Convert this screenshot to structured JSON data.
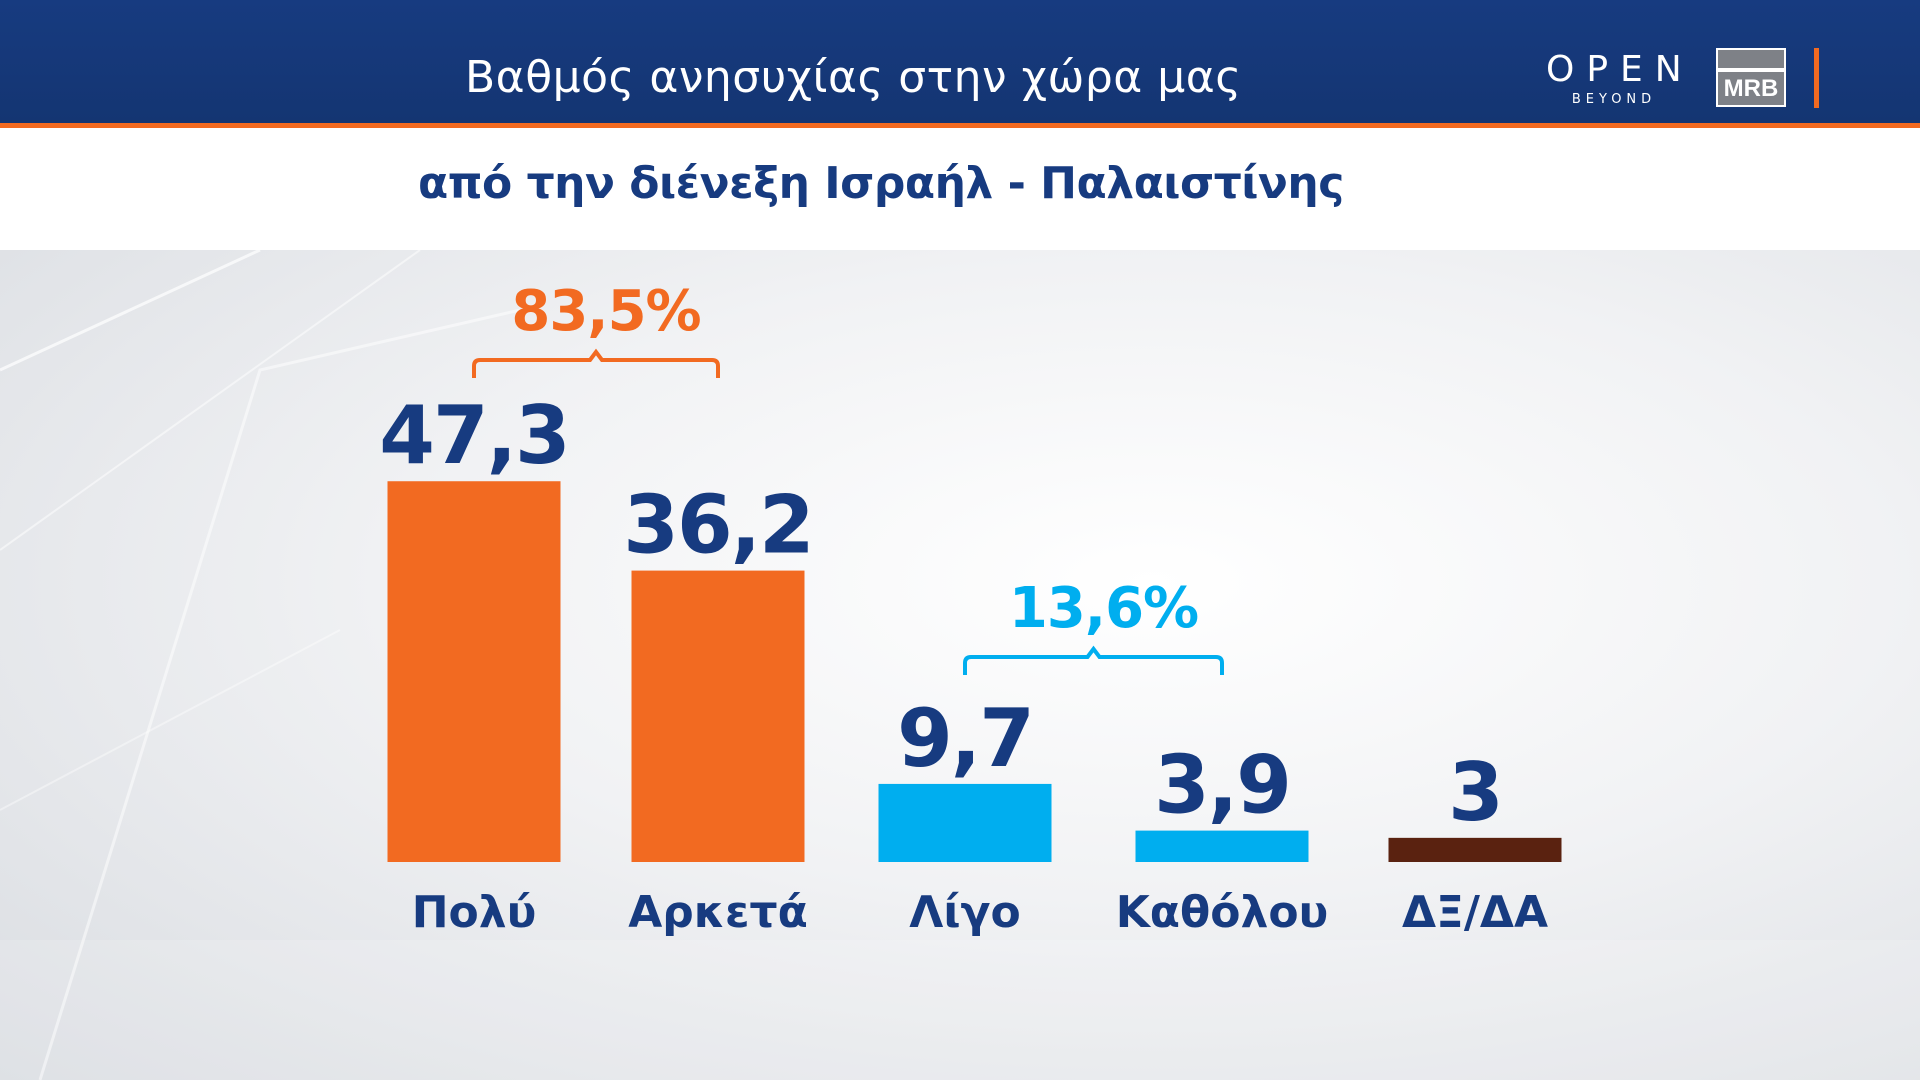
{
  "header": {
    "title": "Βαθμός ανησυχίας στην χώρα μας",
    "subtitle": "από την διένεξη Ισραήλ - Παλαιστίνης",
    "logo_open": "OPEN",
    "logo_beyond": "BEYOND",
    "logo_mrb": "MRB"
  },
  "colors": {
    "navy": "#173b80",
    "orange": "#f26a21",
    "cyan": "#00aeef",
    "brown": "#5a2210"
  },
  "chart_data": {
    "type": "bar",
    "title": "Βαθμός ανησυχίας στην χώρα μας",
    "subtitle": "από την διένεξη Ισραήλ - Παλαιστίνης",
    "categories": [
      "Πολύ",
      "Αρκετά",
      "Λίγο",
      "Καθόλου",
      "ΔΞ/ΔΑ"
    ],
    "values": [
      47.3,
      36.2,
      9.7,
      3.9,
      3
    ],
    "value_labels": [
      "47,3",
      "36,2",
      "9,7",
      "3,9",
      "3"
    ],
    "bar_colors": [
      "#f26a21",
      "#f26a21",
      "#00aeef",
      "#00aeef",
      "#5a2210"
    ],
    "groups": [
      {
        "label": "83,5%",
        "value": 83.5,
        "categories": [
          "Πολύ",
          "Αρκετά"
        ],
        "color": "#f26a21"
      },
      {
        "label": "13,6%",
        "value": 13.6,
        "categories": [
          "Λίγο",
          "Καθόλου"
        ],
        "color": "#00aeef"
      }
    ],
    "xlabel": "",
    "ylabel": "",
    "ylim": [
      0,
      50
    ],
    "grid": false,
    "legend": "none"
  }
}
